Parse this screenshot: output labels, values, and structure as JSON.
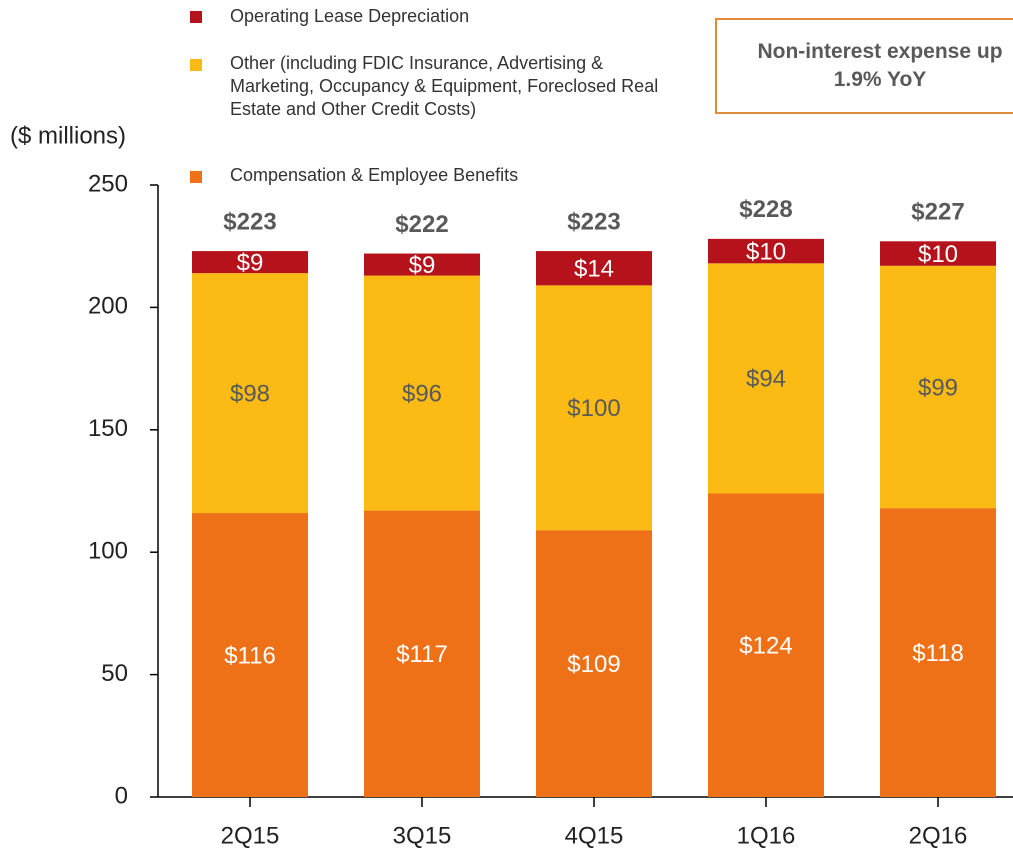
{
  "chart_data": {
    "type": "stacked_bar",
    "y_label": "($ millions)",
    "annotation": "Non-interest expense up 1.9% YoY",
    "categories": [
      "2Q15",
      "3Q15",
      "4Q15",
      "1Q16",
      "2Q16"
    ],
    "series": [
      {
        "name": "Compensation & Employee Benefits",
        "color": "#ee7118",
        "values": [
          116,
          117,
          109,
          124,
          118
        ],
        "value_labels": [
          "$116",
          "$117",
          "$109",
          "$124",
          "$118"
        ]
      },
      {
        "name": "Other (including FDIC Insurance, Advertising & Marketing, Occupancy & Equipment, Foreclosed Real Estate and Other Credit Costs)",
        "color": "#fbbb14",
        "values": [
          98,
          96,
          100,
          94,
          99
        ],
        "value_labels": [
          "$98",
          "$96",
          "$100",
          "$94",
          "$99"
        ]
      },
      {
        "name": "Operating Lease Depreciation",
        "color": "#b5121b",
        "values": [
          9,
          9,
          14,
          10,
          10
        ],
        "value_labels": [
          "$9",
          "$9",
          "$14",
          "$10",
          "$10"
        ]
      }
    ],
    "totals": [
      223,
      222,
      223,
      228,
      227
    ],
    "total_labels": [
      "$223",
      "$222",
      "$223",
      "$228",
      "$227"
    ],
    "ylim": [
      0,
      250
    ],
    "yticks": [
      0,
      50,
      100,
      150,
      200,
      250
    ]
  }
}
